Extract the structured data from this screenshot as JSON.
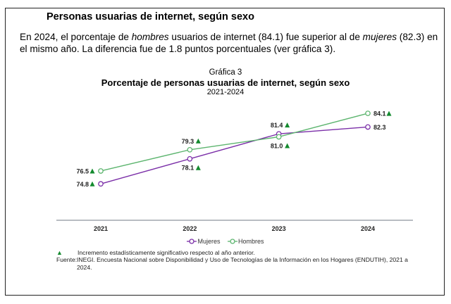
{
  "section_title": "Personas usuarias de internet, según sexo",
  "paragraph": {
    "part1": "En 2024, el porcentaje de ",
    "em1": "hombres",
    "part2": " usuarios de internet (84.1) fue superior al de ",
    "em2": "mujeres",
    "part3": " (82.3) en el mismo año. La diferencia fue de 1.8 puntos porcentuales (ver gráfica 3)."
  },
  "chart_data": {
    "type": "line",
    "caption": "Gráfica 3",
    "title": "Porcentaje de personas usuarias de internet, según sexo",
    "subtitle": "2021-2024",
    "xlabel": "",
    "ylabel": "",
    "categories": [
      "2021",
      "2022",
      "2023",
      "2024"
    ],
    "ylim": [
      70,
      85.5
    ],
    "grid": false,
    "legend_position": "bottom",
    "series": [
      {
        "name": "Mujeres",
        "color": "#7b2fa8",
        "values": [
          74.8,
          78.1,
          81.4,
          82.3
        ],
        "labels": [
          "74.8",
          "78.1",
          "81.4",
          "82.3"
        ],
        "significant": [
          true,
          true,
          true,
          false
        ],
        "label_position": [
          "left",
          "below",
          "above",
          "right"
        ]
      },
      {
        "name": "Hombres",
        "color": "#5db56f",
        "values": [
          76.5,
          79.3,
          81.0,
          84.1
        ],
        "labels": [
          "76.5",
          "79.3",
          "81.0",
          "84.1"
        ],
        "significant": [
          true,
          true,
          true,
          true
        ],
        "label_position": [
          "left",
          "above",
          "below",
          "right"
        ]
      }
    ],
    "significance_marker_color": "#138a2e"
  },
  "notes": {
    "marker": "▲",
    "significance_note": "Incremento estadísticamente significativo respecto al año anterior.",
    "source_label": "Fuente:",
    "source_org": "INEGI",
    "source_text_a": ". Encuesta Nacional sobre Disponibilidad y Uso de Tecnologías de la Información en los Hogares (",
    "source_abbr": "ENDUTIH",
    "source_text_b": "), 2021 a 2024."
  }
}
